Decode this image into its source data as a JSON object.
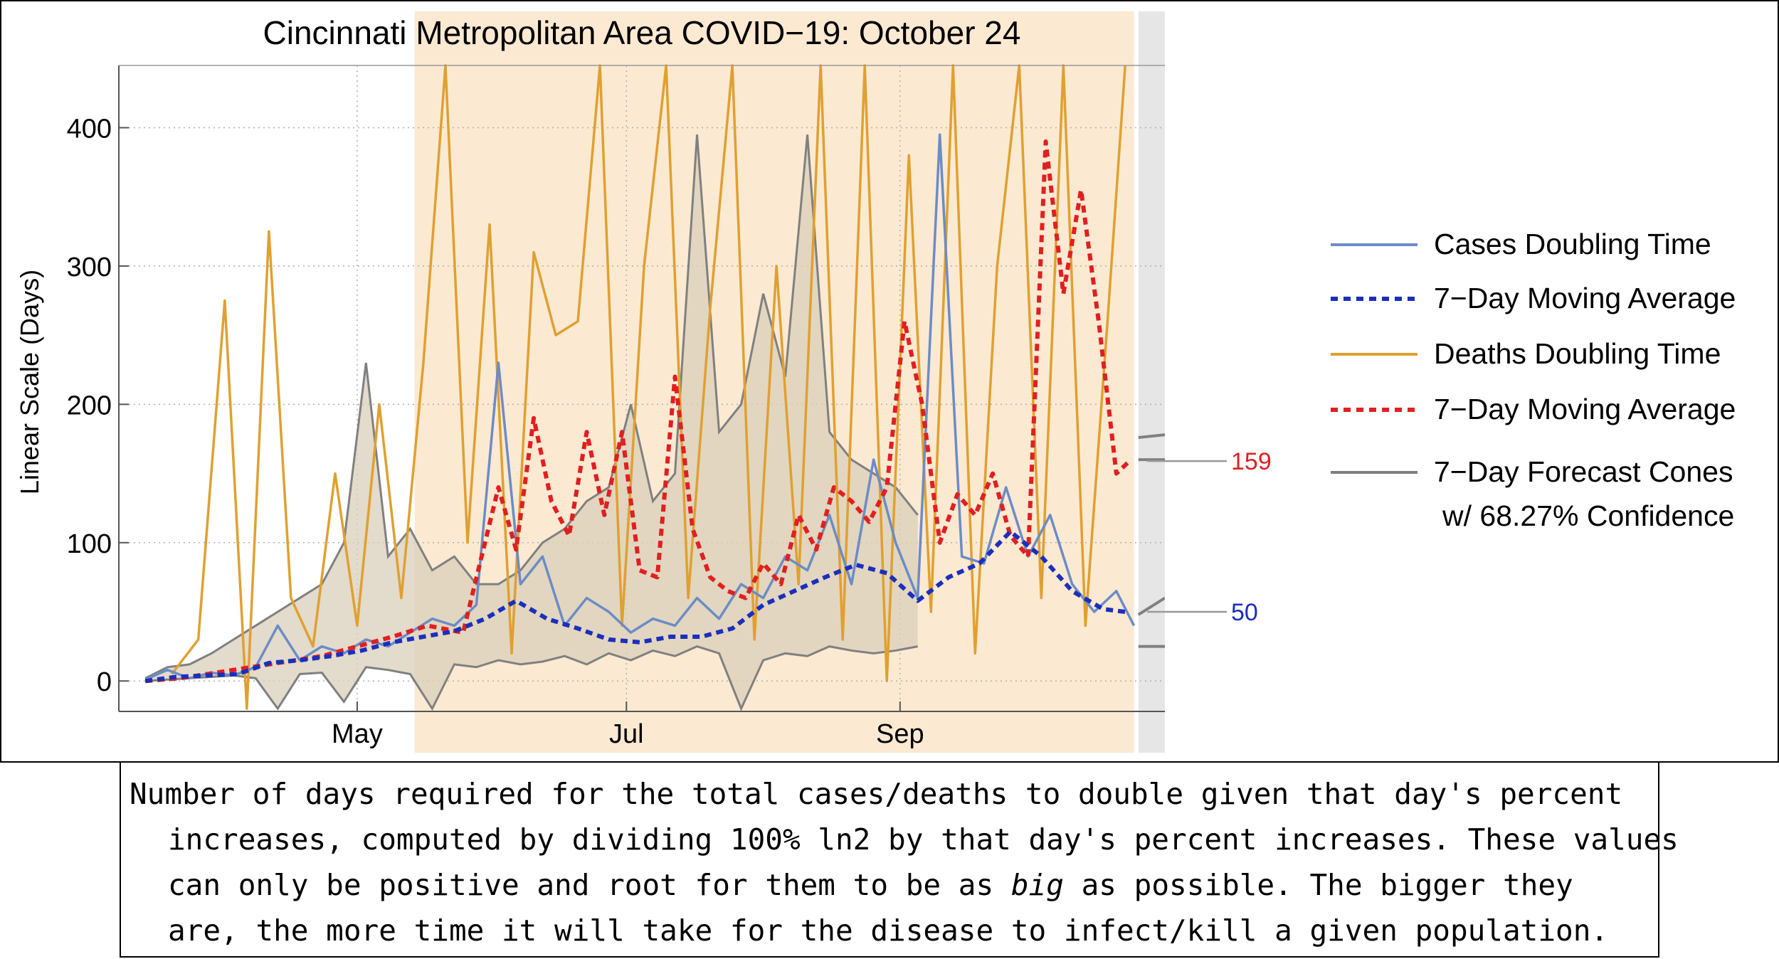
{
  "chart_data": {
    "type": "line",
    "title": "Cincinnati Metropolitan Area COVID−19: October 24",
    "ylabel": "Linear Scale (Days)",
    "xlabel": "",
    "x_ticks": [
      "May",
      "Jul",
      "Sep"
    ],
    "y_ticks": [
      "0",
      "100",
      "200",
      "300",
      "400"
    ],
    "ylim": [
      -22,
      445
    ],
    "xlim": [
      "2020-03-08",
      "2020-10-31"
    ],
    "grid": "dotted",
    "legend_position": "right",
    "shaded_region_color": "#fbe9d2",
    "forecast_region_color": "#e6e6e6",
    "series": [
      {
        "name": "Cases Doubling Time",
        "style": "solid",
        "color": "#6b8cc7",
        "x": [
          "2020-03-14",
          "2020-03-19",
          "2020-03-24",
          "2020-03-29",
          "2020-04-03",
          "2020-04-08",
          "2020-04-13",
          "2020-04-18",
          "2020-04-23",
          "2020-04-28",
          "2020-05-03",
          "2020-05-08",
          "2020-05-13",
          "2020-05-18",
          "2020-05-23",
          "2020-05-28",
          "2020-06-02",
          "2020-06-07",
          "2020-06-12",
          "2020-06-17",
          "2020-06-22",
          "2020-06-27",
          "2020-07-02",
          "2020-07-07",
          "2020-07-12",
          "2020-07-17",
          "2020-07-22",
          "2020-07-27",
          "2020-08-01",
          "2020-08-06",
          "2020-08-11",
          "2020-08-16",
          "2020-08-21",
          "2020-08-26",
          "2020-08-31",
          "2020-09-05",
          "2020-09-10",
          "2020-09-15",
          "2020-09-20",
          "2020-09-25",
          "2020-09-30",
          "2020-10-05",
          "2020-10-10",
          "2020-10-15",
          "2020-10-20",
          "2020-10-24"
        ],
        "values": [
          1,
          8,
          2,
          6,
          4,
          10,
          40,
          15,
          25,
          20,
          30,
          25,
          35,
          45,
          40,
          55,
          230,
          70,
          90,
          40,
          60,
          50,
          35,
          45,
          40,
          60,
          45,
          70,
          60,
          90,
          80,
          120,
          70,
          160,
          100,
          60,
          395,
          90,
          85,
          140,
          90,
          120,
          70,
          50,
          65,
          40
        ]
      },
      {
        "name": "7−Day Moving Average",
        "style": "dashed",
        "color": "#1a2fbd",
        "x": [
          "2020-03-14",
          "2020-03-21",
          "2020-03-28",
          "2020-04-04",
          "2020-04-11",
          "2020-04-18",
          "2020-04-25",
          "2020-05-02",
          "2020-05-09",
          "2020-05-16",
          "2020-05-23",
          "2020-05-30",
          "2020-06-06",
          "2020-06-13",
          "2020-06-20",
          "2020-06-27",
          "2020-07-04",
          "2020-07-11",
          "2020-07-18",
          "2020-07-25",
          "2020-08-01",
          "2020-08-08",
          "2020-08-15",
          "2020-08-22",
          "2020-08-29",
          "2020-09-05",
          "2020-09-12",
          "2020-09-19",
          "2020-09-26",
          "2020-10-03",
          "2020-10-10",
          "2020-10-17",
          "2020-10-22"
        ],
        "values": [
          0,
          3,
          4,
          5,
          13,
          15,
          18,
          22,
          28,
          32,
          36,
          45,
          58,
          45,
          38,
          30,
          28,
          32,
          32,
          38,
          55,
          65,
          75,
          84,
          78,
          58,
          75,
          85,
          108,
          90,
          65,
          52,
          50
        ]
      },
      {
        "name": "Deaths Doubling Time",
        "style": "solid",
        "color": "#e0a030",
        "x": [
          "2020-03-20",
          "2020-03-26",
          "2020-04-01",
          "2020-04-06",
          "2020-04-11",
          "2020-04-16",
          "2020-04-21",
          "2020-04-26",
          "2020-05-01",
          "2020-05-06",
          "2020-05-11",
          "2020-05-16",
          "2020-05-21",
          "2020-05-26",
          "2020-05-31",
          "2020-06-05",
          "2020-06-10",
          "2020-06-15",
          "2020-06-20",
          "2020-06-25",
          "2020-06-30",
          "2020-07-05",
          "2020-07-10",
          "2020-07-15",
          "2020-07-20",
          "2020-07-25",
          "2020-07-30",
          "2020-08-04",
          "2020-08-09",
          "2020-08-14",
          "2020-08-19",
          "2020-08-24",
          "2020-08-29",
          "2020-09-03",
          "2020-09-08",
          "2020-09-13",
          "2020-09-18",
          "2020-09-23",
          "2020-09-28",
          "2020-10-03",
          "2020-10-08",
          "2020-10-13",
          "2020-10-18",
          "2020-10-22"
        ],
        "values": [
          5,
          30,
          275,
          -20,
          325,
          60,
          25,
          150,
          40,
          200,
          60,
          230,
          445,
          100,
          330,
          20,
          310,
          250,
          260,
          445,
          40,
          300,
          445,
          60,
          270,
          445,
          30,
          300,
          70,
          445,
          30,
          445,
          0,
          380,
          50,
          445,
          20,
          300,
          445,
          60,
          445,
          40,
          260,
          445
        ]
      },
      {
        "name": "7−Day Moving Average",
        "style": "dashed",
        "color": "#e02020",
        "x": [
          "2020-03-14",
          "2020-03-22",
          "2020-03-30",
          "2020-04-07",
          "2020-04-15",
          "2020-04-23",
          "2020-05-01",
          "2020-05-09",
          "2020-05-17",
          "2020-05-25",
          "2020-06-02",
          "2020-06-06",
          "2020-06-10",
          "2020-06-14",
          "2020-06-18",
          "2020-06-22",
          "2020-06-26",
          "2020-06-30",
          "2020-07-04",
          "2020-07-08",
          "2020-07-12",
          "2020-07-16",
          "2020-07-20",
          "2020-07-24",
          "2020-07-28",
          "2020-08-01",
          "2020-08-05",
          "2020-08-09",
          "2020-08-13",
          "2020-08-17",
          "2020-08-21",
          "2020-08-25",
          "2020-08-29",
          "2020-09-02",
          "2020-09-06",
          "2020-09-10",
          "2020-09-14",
          "2020-09-18",
          "2020-09-22",
          "2020-09-26",
          "2020-09-30",
          "2020-10-04",
          "2020-10-08",
          "2020-10-12",
          "2020-10-16",
          "2020-10-20",
          "2020-10-23"
        ],
        "values": [
          0,
          2,
          6,
          10,
          14,
          18,
          25,
          32,
          40,
          35,
          140,
          95,
          190,
          130,
          105,
          180,
          120,
          180,
          80,
          75,
          220,
          110,
          75,
          65,
          60,
          85,
          70,
          120,
          95,
          140,
          130,
          115,
          140,
          260,
          200,
          100,
          135,
          120,
          150,
          105,
          90,
          390,
          280,
          355,
          260,
          150,
          159
        ]
      },
      {
        "name": "7−Day Forecast Cones",
        "name_line2": "w/ 68.27% Confidence",
        "style": "solid",
        "color": "#808080",
        "band_lower": [
          0,
          1,
          2,
          3,
          4,
          2,
          -20,
          5,
          6,
          -15,
          10,
          8,
          5,
          -20,
          12,
          10,
          15,
          12,
          14,
          18,
          12,
          20,
          15,
          22,
          18,
          25,
          20,
          -20,
          15,
          20,
          18,
          25,
          22,
          20,
          22,
          25
        ],
        "band_upper": [
          2,
          10,
          12,
          20,
          30,
          40,
          50,
          60,
          70,
          100,
          230,
          90,
          110,
          80,
          90,
          70,
          70,
          80,
          100,
          110,
          130,
          140,
          200,
          130,
          150,
          395,
          180,
          200,
          280,
          220,
          395,
          180,
          160,
          150,
          140,
          120
        ],
        "forecast_cases_cone": [
          25,
          60
        ],
        "forecast_deaths_cone": [
          160,
          178
        ]
      }
    ],
    "annotations": [
      {
        "label": "159",
        "y": 159,
        "color": "#e02020"
      },
      {
        "label": "50",
        "y": 50,
        "color": "#1a2fbd"
      }
    ]
  },
  "caption": {
    "line1": "Number of days required for the total cases/deaths to double given that day's percent",
    "line2": "increases, computed by dividing 100% ln2 by that day's percent increases. These values",
    "line3a": "can only be positive and root for them to be as ",
    "line3_em": "big",
    "line3b": " as possible. The bigger they",
    "line4": "are, the more time it will take for the disease to infect/kill a given population."
  }
}
